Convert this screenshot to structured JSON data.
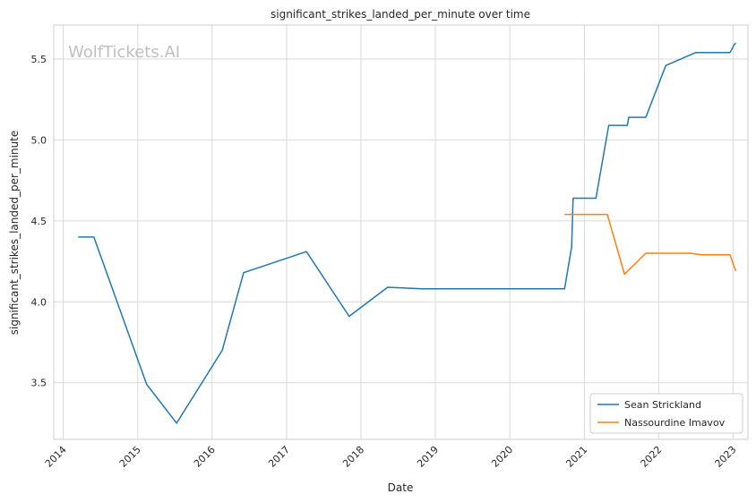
{
  "chart_data": {
    "type": "line",
    "title": "significant_strikes_landed_per_minute over time",
    "xlabel": "Date",
    "ylabel": "significant_strikes_landed_per_minute",
    "watermark": "WolfTickets.AI",
    "xlim": [
      "2013-11-15",
      "2023-03-15"
    ],
    "ylim": [
      3.15,
      5.71
    ],
    "x_ticks": [
      "2014",
      "2015",
      "2016",
      "2017",
      "2018",
      "2019",
      "2020",
      "2021",
      "2022",
      "2023"
    ],
    "y_ticks": [
      3.5,
      4.0,
      4.5,
      5.0,
      5.5
    ],
    "y_tick_labels": [
      "3.5",
      "4.0",
      "4.5",
      "5.0",
      "5.5"
    ],
    "grid": true,
    "legend_position": "bottom-right",
    "series": [
      {
        "name": "Sean Strickland",
        "color": "#1f77b4",
        "points": [
          [
            "2014-03-15",
            4.4
          ],
          [
            "2014-05-31",
            4.4
          ],
          [
            "2015-02-14",
            3.49
          ],
          [
            "2015-07-11",
            3.25
          ],
          [
            "2016-02-20",
            3.7
          ],
          [
            "2016-06-04",
            4.18
          ],
          [
            "2017-04-08",
            4.31
          ],
          [
            "2017-11-04",
            3.91
          ],
          [
            "2018-05-12",
            4.09
          ],
          [
            "2018-10-27",
            4.08
          ],
          [
            "2020-09-26",
            4.08
          ],
          [
            "2020-10-31",
            4.34
          ],
          [
            "2020-11-07",
            4.64
          ],
          [
            "2021-02-27",
            4.64
          ],
          [
            "2021-05-01",
            5.09
          ],
          [
            "2021-07-31",
            5.09
          ],
          [
            "2021-08-07",
            5.14
          ],
          [
            "2021-10-30",
            5.14
          ],
          [
            "2022-02-05",
            5.46
          ],
          [
            "2022-07-02",
            5.54
          ],
          [
            "2022-12-17",
            5.54
          ],
          [
            "2023-01-07",
            5.59
          ],
          [
            "2023-01-14",
            5.6
          ]
        ]
      },
      {
        "name": "Nassourdine Imavov",
        "color": "#ff7f0e",
        "points": [
          [
            "2020-09-26",
            4.54
          ],
          [
            "2021-04-24",
            4.54
          ],
          [
            "2021-07-17",
            4.17
          ],
          [
            "2021-10-30",
            4.3
          ],
          [
            "2022-06-04",
            4.3
          ],
          [
            "2022-07-30",
            4.29
          ],
          [
            "2022-12-17",
            4.29
          ],
          [
            "2023-01-14",
            4.19
          ]
        ]
      }
    ]
  }
}
